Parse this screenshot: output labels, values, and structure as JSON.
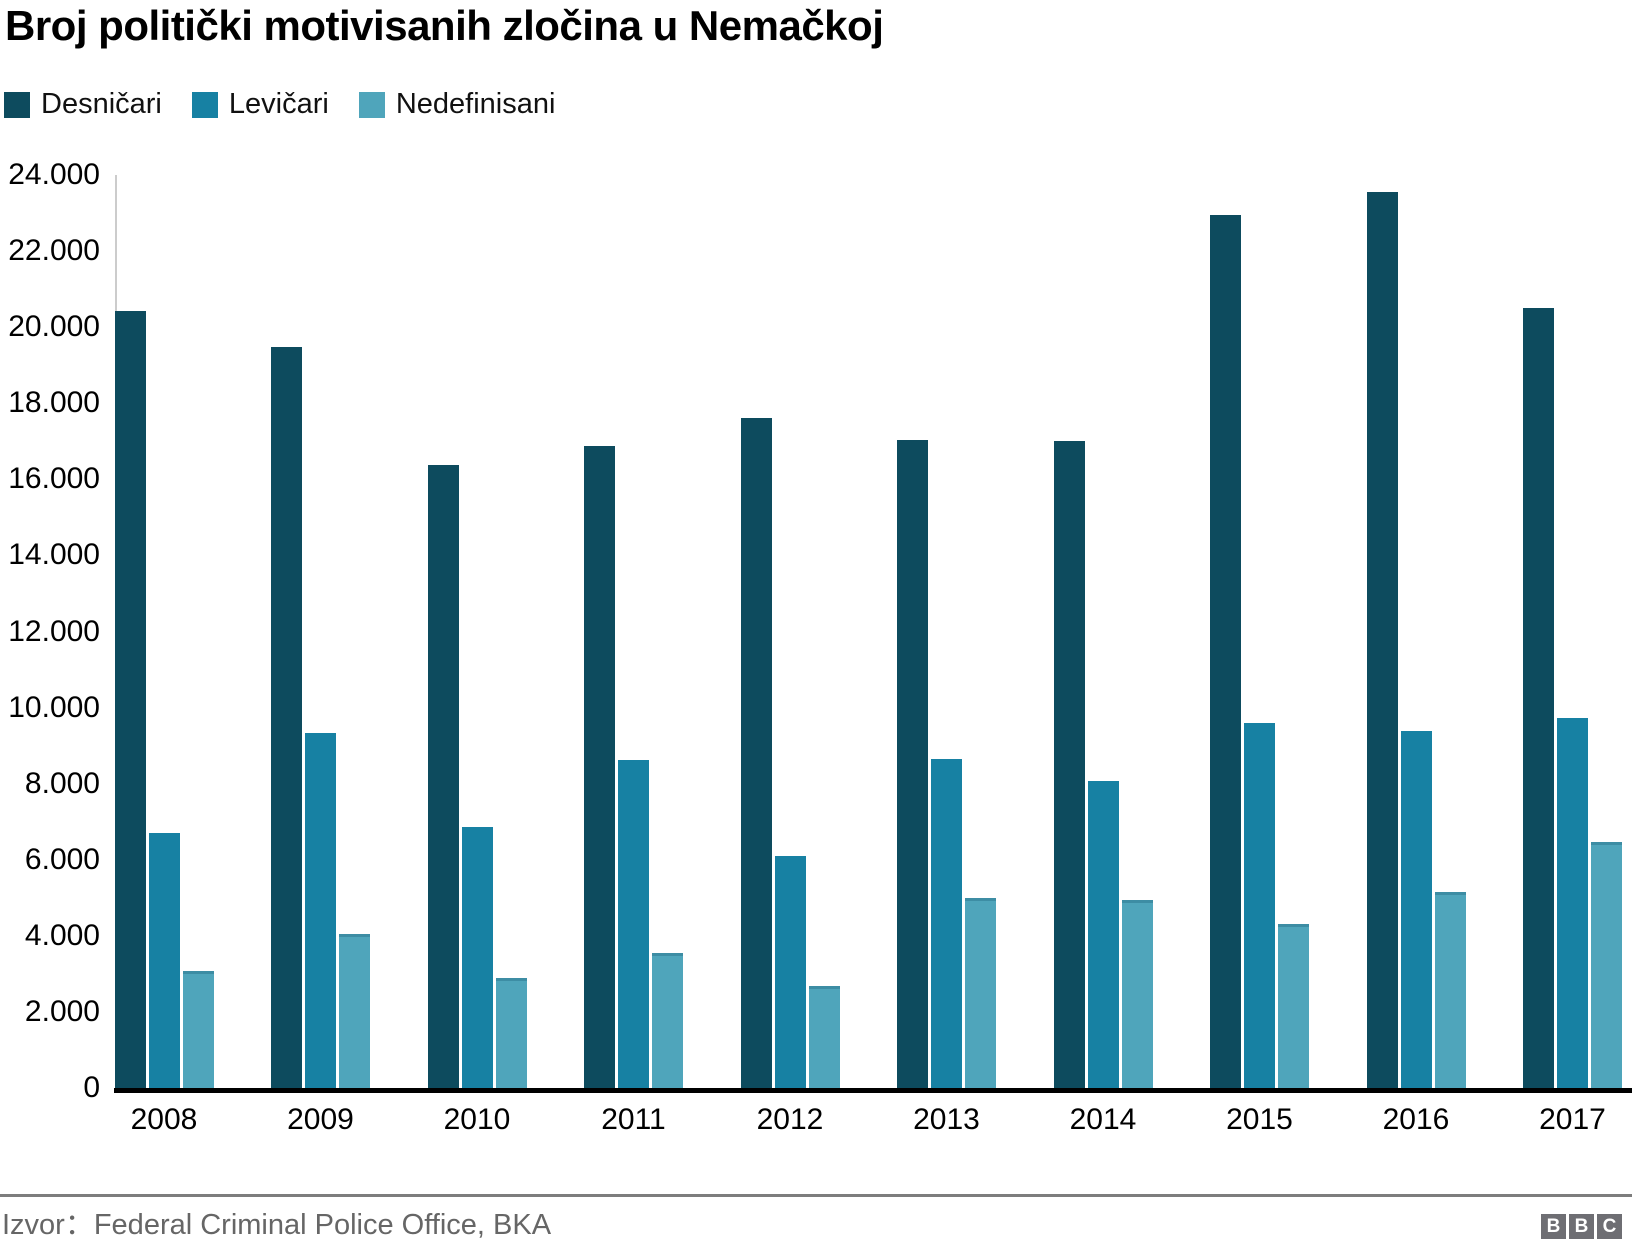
{
  "title": "Broj politički motivisanih zločina u Nemačkoj",
  "chart_data": {
    "type": "bar",
    "title": "Broj politički motivisanih zločina u Nemačkoj",
    "categories": [
      "2008",
      "2009",
      "2010",
      "2011",
      "2012",
      "2013",
      "2014",
      "2015",
      "2016",
      "2017"
    ],
    "series": [
      {
        "name": "Desničari",
        "color": "#0d4b5e",
        "values": [
          20420,
          19470,
          16370,
          16880,
          17620,
          17040,
          17020,
          22960,
          23550,
          20500
        ]
      },
      {
        "name": "Levičari",
        "color": "#1781a3",
        "values": [
          6700,
          9340,
          6850,
          8620,
          6100,
          8640,
          8060,
          9600,
          9390,
          9720
        ]
      },
      {
        "name": "Nedefinisani",
        "color": "#4fa5bb",
        "values": [
          3080,
          4040,
          2900,
          3560,
          2680,
          4990,
          4940,
          4320,
          5150,
          6460
        ]
      }
    ],
    "xlabel": "",
    "ylabel": "",
    "ylim": [
      0,
      24000
    ],
    "y_tick_step": 2000,
    "y_tick_labels": [
      "0",
      "2.000",
      "4.000",
      "6.000",
      "8.000",
      "10.000",
      "12.000",
      "14.000",
      "16.000",
      "18.000",
      "20.000",
      "22.000",
      "24.000"
    ],
    "grid": false,
    "legend_position": "top-left"
  },
  "footer": {
    "source": "Izvor：Federal Criminal Police Office, BKA",
    "logo_letters": [
      "B",
      "B",
      "C"
    ]
  }
}
